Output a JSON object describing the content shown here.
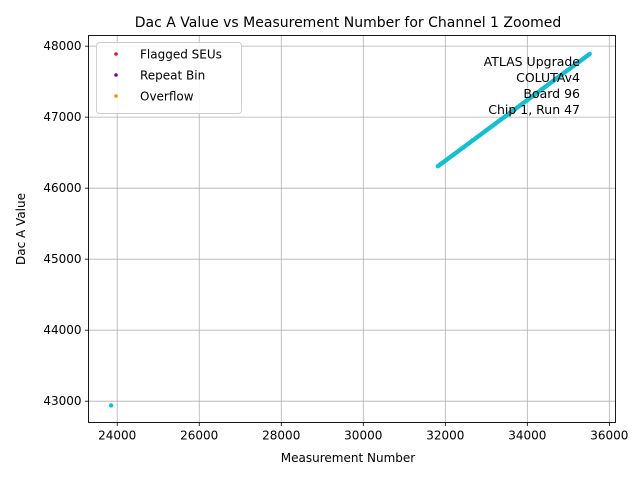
{
  "chart_data": {
    "type": "scatter",
    "title": "Dac A Value vs Measurement Number for Channel 1 Zoomed",
    "xlabel": "Measurement Number",
    "ylabel": "Dac A Value",
    "xlim": [
      23300,
      36150
    ],
    "ylim": [
      42700,
      48150
    ],
    "x_ticks": [
      24000,
      26000,
      28000,
      30000,
      32000,
      34000,
      36000
    ],
    "y_ticks": [
      43000,
      44000,
      45000,
      46000,
      47000,
      48000
    ],
    "grid": true,
    "legend_placement": "top-left",
    "legend": [
      {
        "name": "Flagged SEUs",
        "color": "#dc143c"
      },
      {
        "name": "Repeat Bin",
        "color": "#800080"
      },
      {
        "name": "Overflow",
        "color": "#ff8c00"
      }
    ],
    "annotation": [
      "ATLAS Upgrade",
      "COLUTAv4",
      "Board 96",
      "Chip 1, Run 47"
    ],
    "series": [
      {
        "color": "#17becf",
        "outlier": {
          "x": 23850,
          "y": 42940
        },
        "line_segment": {
          "x_start": 31820,
          "y_start": 46310,
          "x_end": 35520,
          "y_end": 47890
        }
      }
    ]
  }
}
